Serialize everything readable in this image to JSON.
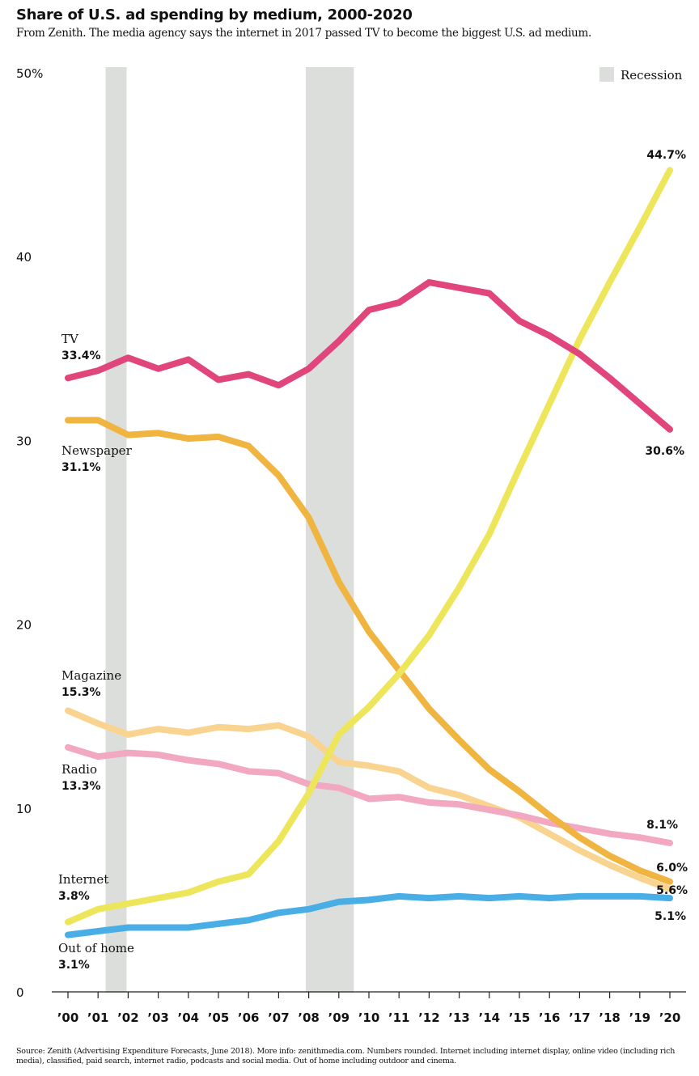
{
  "title": "Share of U.S. ad spending by medium, 2000-2020",
  "subtitle": "From Zenith. The media agency says the internet in 2017 passed TV to become the biggest U.S. ad medium.",
  "source": "Source: Zenith (Advertising Expenditure Forecasts, June 2018). More info: zenithmedia.com. Numbers rounded. Internet including internet display, online video (including rich media), classified, paid search, internet radio, podcasts and social media. Out of home including outdoor and cinema.",
  "chart_data": {
    "type": "line",
    "ylim": [
      0,
      50
    ],
    "y_ticks": [
      0,
      10,
      20,
      30,
      40,
      50
    ],
    "y_tick_labels": [
      "0",
      "10",
      "20",
      "30",
      "40",
      "50%"
    ],
    "x": [
      2000,
      2001,
      2002,
      2003,
      2004,
      2005,
      2006,
      2007,
      2008,
      2009,
      2010,
      2011,
      2012,
      2013,
      2014,
      2015,
      2016,
      2017,
      2018,
      2019,
      2020
    ],
    "x_tick_labels": [
      "’00",
      "’01",
      "’02",
      "’03",
      "’04",
      "’05",
      "’06",
      "’07",
      "’08",
      "’09",
      "’10",
      "’11",
      "’12",
      "’13",
      "’14",
      "’15",
      "’16",
      "’17",
      "’18",
      "’19",
      "’20"
    ],
    "legend": {
      "label": "Recession",
      "color": "#dcdedc",
      "placement": "top-right"
    },
    "recessions": [
      [
        2001.25,
        2001.95
      ],
      [
        2007.9,
        2009.5
      ]
    ],
    "series": [
      {
        "name": "TV",
        "start_label": "33.4%",
        "end_label": "30.6%",
        "color": "#e0457b",
        "values": [
          33.4,
          33.8,
          34.5,
          33.9,
          34.4,
          33.3,
          33.6,
          33.0,
          33.9,
          35.4,
          37.1,
          37.5,
          38.6,
          38.3,
          38.0,
          36.5,
          35.7,
          34.7,
          33.4,
          32.0,
          30.6
        ]
      },
      {
        "name": "Newspaper",
        "start_label": "31.1%",
        "end_label": "6.0%",
        "color": "#f0b441",
        "values": [
          31.1,
          31.1,
          30.3,
          30.4,
          30.1,
          30.2,
          29.7,
          28.1,
          25.8,
          22.3,
          19.6,
          17.5,
          15.4,
          13.7,
          12.1,
          10.9,
          9.6,
          8.4,
          7.4,
          6.6,
          6.0
        ]
      },
      {
        "name": "Magazine",
        "start_label": "15.3%",
        "end_label": "5.6%",
        "color": "#f9d491",
        "values": [
          15.3,
          14.6,
          14.0,
          14.3,
          14.1,
          14.4,
          14.3,
          14.5,
          13.9,
          12.5,
          12.3,
          12.0,
          11.1,
          10.7,
          10.1,
          9.5,
          8.6,
          7.7,
          6.9,
          6.2,
          5.6
        ]
      },
      {
        "name": "Radio",
        "start_label": "13.3%",
        "end_label": "8.1%",
        "color": "#f1a8c0",
        "values": [
          13.3,
          12.8,
          13.0,
          12.9,
          12.6,
          12.4,
          12.0,
          11.9,
          11.3,
          11.1,
          10.5,
          10.6,
          10.3,
          10.2,
          9.9,
          9.6,
          9.2,
          8.9,
          8.6,
          8.4,
          8.1
        ]
      },
      {
        "name": "Internet",
        "start_label": "3.8%",
        "end_label": "44.7%",
        "color": "#ede65b",
        "values": [
          3.8,
          4.5,
          4.8,
          5.1,
          5.4,
          6.0,
          6.4,
          8.2,
          10.8,
          14.0,
          15.5,
          17.3,
          19.4,
          22.0,
          24.9,
          28.5,
          32.0,
          35.5,
          38.6,
          41.6,
          44.7
        ]
      },
      {
        "name": "Out of home",
        "start_label": "3.1%",
        "end_label": "5.1%",
        "color": "#4aaee6",
        "values": [
          3.1,
          3.3,
          3.5,
          3.5,
          3.5,
          3.7,
          3.9,
          4.3,
          4.5,
          4.9,
          5.0,
          5.2,
          5.1,
          5.2,
          5.1,
          5.2,
          5.1,
          5.2,
          5.2,
          5.2,
          5.1
        ]
      }
    ]
  }
}
